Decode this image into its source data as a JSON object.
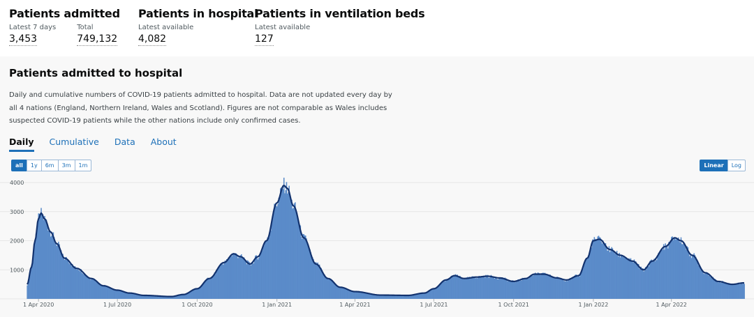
{
  "cards": [
    {
      "title": "Patients admitted",
      "metrics": [
        {
          "label": "Latest 7 days",
          "value": "3,453"
        },
        {
          "label": "Total",
          "value": "749,132"
        }
      ]
    },
    {
      "title": "Patients in hospital",
      "metrics": [
        {
          "label": "Latest available",
          "value": "4,082"
        }
      ]
    },
    {
      "title": "Patients in ventilation beds",
      "metrics": [
        {
          "label": "Latest available",
          "value": "127"
        }
      ]
    }
  ],
  "panel": {
    "title": "Patients admitted to hospital",
    "description": "Daily and cumulative numbers of COVID-19 patients admitted to hospital. Data are not updated every day by all 4 nations (England, Northern Ireland, Wales and Scotland). Figures are not comparable as Wales includes suspected COVID-19 patients while the other nations include only confirmed cases.",
    "tabs": [
      "Daily",
      "Cumulative",
      "Data",
      "About"
    ],
    "active_tab": "Daily",
    "range_buttons": [
      "all",
      "1y",
      "6m",
      "3m",
      "1m"
    ],
    "range_selected": "all",
    "scale_buttons": [
      "Linear",
      "Log"
    ],
    "scale_selected": "Linear"
  },
  "chart_data": {
    "type": "bar",
    "title": "",
    "xlabel": "",
    "ylabel": "",
    "ylim": [
      0,
      4000
    ],
    "xlim": [
      "2020-03-19",
      "2022-06-24"
    ],
    "y_ticks": [
      0,
      1000,
      2000,
      3000,
      4000
    ],
    "y_tick_labels": [
      "",
      "1000",
      "2000",
      "3000",
      "4000"
    ],
    "x_ticks": [
      "2020-04-01",
      "2020-07-01",
      "2020-10-01",
      "2021-01-01",
      "2021-04-01",
      "2021-07-01",
      "2021-10-01",
      "2022-01-01",
      "2022-04-01"
    ],
    "x_tick_labels": [
      "1 Apr 2020",
      "1 Jul 2020",
      "1 Oct 2020",
      "1 Jan 2021",
      "1 Apr 2021",
      "1 Jul 2021",
      "1 Oct 2021",
      "1 Jan 2022",
      "1 Apr 2022"
    ],
    "grid": true,
    "colors": {
      "bars": "#5a8bc9",
      "line": "#12326e"
    },
    "series": [
      {
        "values": [
          {
            "date": "2020-03-19",
            "value": 500
          },
          {
            "date": "2020-03-24",
            "value": 1100
          },
          {
            "date": "2020-03-28",
            "value": 2000
          },
          {
            "date": "2020-04-01",
            "value": 2750
          },
          {
            "date": "2020-04-04",
            "value": 2950
          },
          {
            "date": "2020-04-08",
            "value": 2750
          },
          {
            "date": "2020-04-15",
            "value": 2300
          },
          {
            "date": "2020-04-22",
            "value": 1900
          },
          {
            "date": "2020-05-01",
            "value": 1400
          },
          {
            "date": "2020-05-15",
            "value": 1050
          },
          {
            "date": "2020-06-01",
            "value": 700
          },
          {
            "date": "2020-06-15",
            "value": 450
          },
          {
            "date": "2020-07-01",
            "value": 300
          },
          {
            "date": "2020-07-15",
            "value": 200
          },
          {
            "date": "2020-08-01",
            "value": 120
          },
          {
            "date": "2020-09-01",
            "value": 80
          },
          {
            "date": "2020-09-15",
            "value": 150
          },
          {
            "date": "2020-10-01",
            "value": 350
          },
          {
            "date": "2020-10-15",
            "value": 700
          },
          {
            "date": "2020-11-01",
            "value": 1250
          },
          {
            "date": "2020-11-12",
            "value": 1550
          },
          {
            "date": "2020-11-20",
            "value": 1450
          },
          {
            "date": "2020-12-01",
            "value": 1200
          },
          {
            "date": "2020-12-10",
            "value": 1450
          },
          {
            "date": "2020-12-20",
            "value": 2000
          },
          {
            "date": "2021-01-01",
            "value": 3300
          },
          {
            "date": "2021-01-09",
            "value": 3900
          },
          {
            "date": "2021-01-13",
            "value": 3800
          },
          {
            "date": "2021-01-20",
            "value": 3200
          },
          {
            "date": "2021-02-01",
            "value": 2100
          },
          {
            "date": "2021-02-15",
            "value": 1200
          },
          {
            "date": "2021-03-01",
            "value": 700
          },
          {
            "date": "2021-03-15",
            "value": 400
          },
          {
            "date": "2021-04-01",
            "value": 250
          },
          {
            "date": "2021-05-01",
            "value": 130
          },
          {
            "date": "2021-06-01",
            "value": 120
          },
          {
            "date": "2021-06-20",
            "value": 200
          },
          {
            "date": "2021-07-01",
            "value": 350
          },
          {
            "date": "2021-07-15",
            "value": 650
          },
          {
            "date": "2021-07-25",
            "value": 800
          },
          {
            "date": "2021-08-05",
            "value": 700
          },
          {
            "date": "2021-08-20",
            "value": 750
          },
          {
            "date": "2021-09-01",
            "value": 780
          },
          {
            "date": "2021-09-15",
            "value": 720
          },
          {
            "date": "2021-10-01",
            "value": 600
          },
          {
            "date": "2021-10-15",
            "value": 700
          },
          {
            "date": "2021-10-25",
            "value": 850
          },
          {
            "date": "2021-11-05",
            "value": 850
          },
          {
            "date": "2021-11-20",
            "value": 720
          },
          {
            "date": "2021-12-01",
            "value": 650
          },
          {
            "date": "2021-12-15",
            "value": 800
          },
          {
            "date": "2021-12-25",
            "value": 1400
          },
          {
            "date": "2022-01-01",
            "value": 2000
          },
          {
            "date": "2022-01-08",
            "value": 2050
          },
          {
            "date": "2022-01-20",
            "value": 1700
          },
          {
            "date": "2022-02-01",
            "value": 1500
          },
          {
            "date": "2022-02-15",
            "value": 1300
          },
          {
            "date": "2022-02-28",
            "value": 1000
          },
          {
            "date": "2022-03-10",
            "value": 1300
          },
          {
            "date": "2022-03-25",
            "value": 1800
          },
          {
            "date": "2022-04-05",
            "value": 2100
          },
          {
            "date": "2022-04-12",
            "value": 2000
          },
          {
            "date": "2022-04-25",
            "value": 1500
          },
          {
            "date": "2022-05-10",
            "value": 900
          },
          {
            "date": "2022-05-25",
            "value": 600
          },
          {
            "date": "2022-06-10",
            "value": 500
          },
          {
            "date": "2022-06-24",
            "value": 550
          }
        ]
      }
    ]
  }
}
